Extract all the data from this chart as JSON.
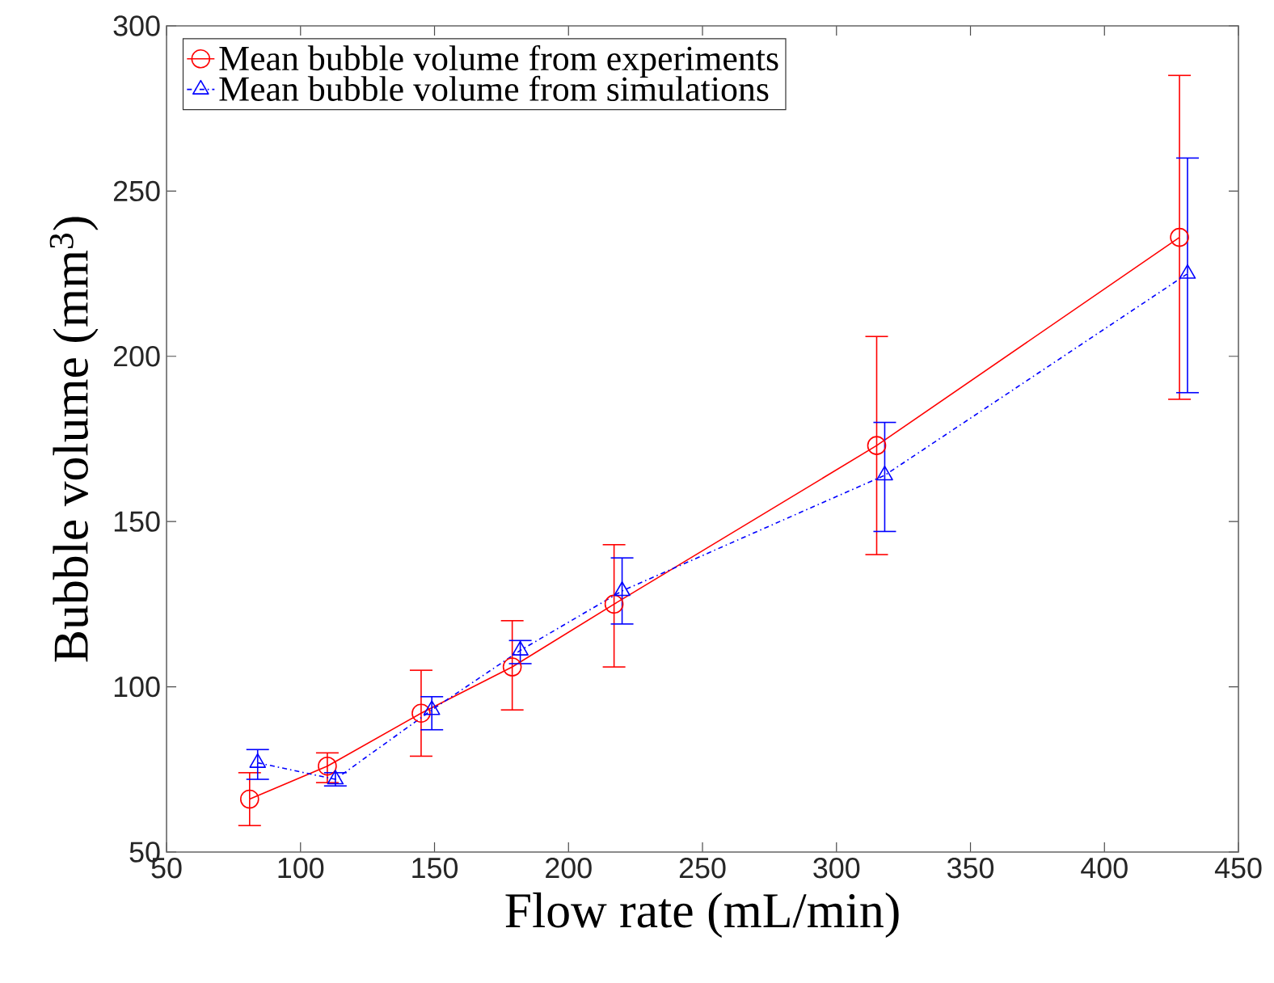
{
  "chart_data": {
    "type": "line",
    "xlabel": "Flow rate (mL/min)",
    "ylabel": "Bubble volume (mm$^{3}$)",
    "xlim": [
      50,
      450
    ],
    "xticks": [
      50,
      100,
      150,
      200,
      250,
      300,
      350,
      400,
      450
    ],
    "ylim": [
      50,
      300
    ],
    "yticks": [
      50,
      100,
      150,
      200,
      250,
      300
    ],
    "grid": false,
    "legend": "top left",
    "series": [
      {
        "name": "Mean bubble volume from experiments",
        "color": "#ff0000",
        "marker": "circle",
        "line_style": "solid",
        "x": [
          81,
          110,
          145,
          179,
          217,
          315,
          428
        ],
        "values": [
          66,
          76,
          92,
          106,
          125,
          173,
          236
        ],
        "errors": [
          [
            58,
            74
          ],
          [
            71,
            80
          ],
          [
            79,
            105
          ],
          [
            93,
            120
          ],
          [
            106,
            143
          ],
          [
            140,
            206
          ],
          [
            187,
            285
          ]
        ]
      },
      {
        "name": "Mean bubble volume from simulations",
        "color": "#0000ff",
        "marker": "triangle",
        "line_style": "dashdot",
        "x": [
          84,
          113,
          149,
          182,
          220,
          318,
          431
        ],
        "values": [
          77,
          72,
          93,
          111,
          129,
          164,
          225
        ],
        "errors": [
          [
            72,
            81
          ],
          [
            70,
            74
          ],
          [
            87,
            97
          ],
          [
            107,
            114
          ],
          [
            119,
            139
          ],
          [
            147,
            180
          ],
          [
            189,
            260
          ]
        ]
      }
    ]
  }
}
